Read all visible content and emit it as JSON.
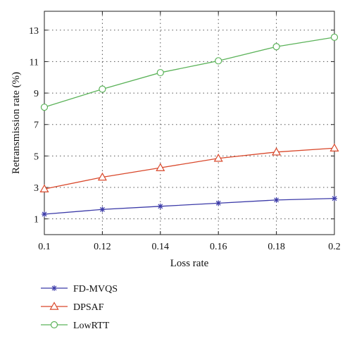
{
  "chart_data": {
    "type": "line",
    "xlabel": "Loss rate",
    "ylabel": "Retransmission rate (%)",
    "x": [
      0.1,
      0.12,
      0.14,
      0.16,
      0.18,
      0.2
    ],
    "x_tick_labels": [
      "0.1",
      "0.12",
      "0.14",
      "0.16",
      "0.18",
      "0.2"
    ],
    "y_ticks": [
      1,
      3,
      5,
      7,
      9,
      11,
      13
    ],
    "xlim": [
      0.1,
      0.2
    ],
    "ylim": [
      0,
      14.2
    ],
    "grid": true,
    "legend_position": "below",
    "series": [
      {
        "name": "FD-MVQS",
        "values": [
          1.3,
          1.6,
          1.8,
          2.0,
          2.2,
          2.3
        ],
        "color": "#3b3aa8",
        "marker": "asterisk"
      },
      {
        "name": "DPSAF",
        "values": [
          2.9,
          3.65,
          4.25,
          4.85,
          5.25,
          5.5
        ],
        "color": "#d9482b",
        "marker": "triangle"
      },
      {
        "name": "LowRTT",
        "values": [
          8.1,
          9.25,
          10.3,
          11.05,
          11.95,
          12.55
        ],
        "color": "#5cb35a",
        "marker": "circle"
      }
    ]
  }
}
